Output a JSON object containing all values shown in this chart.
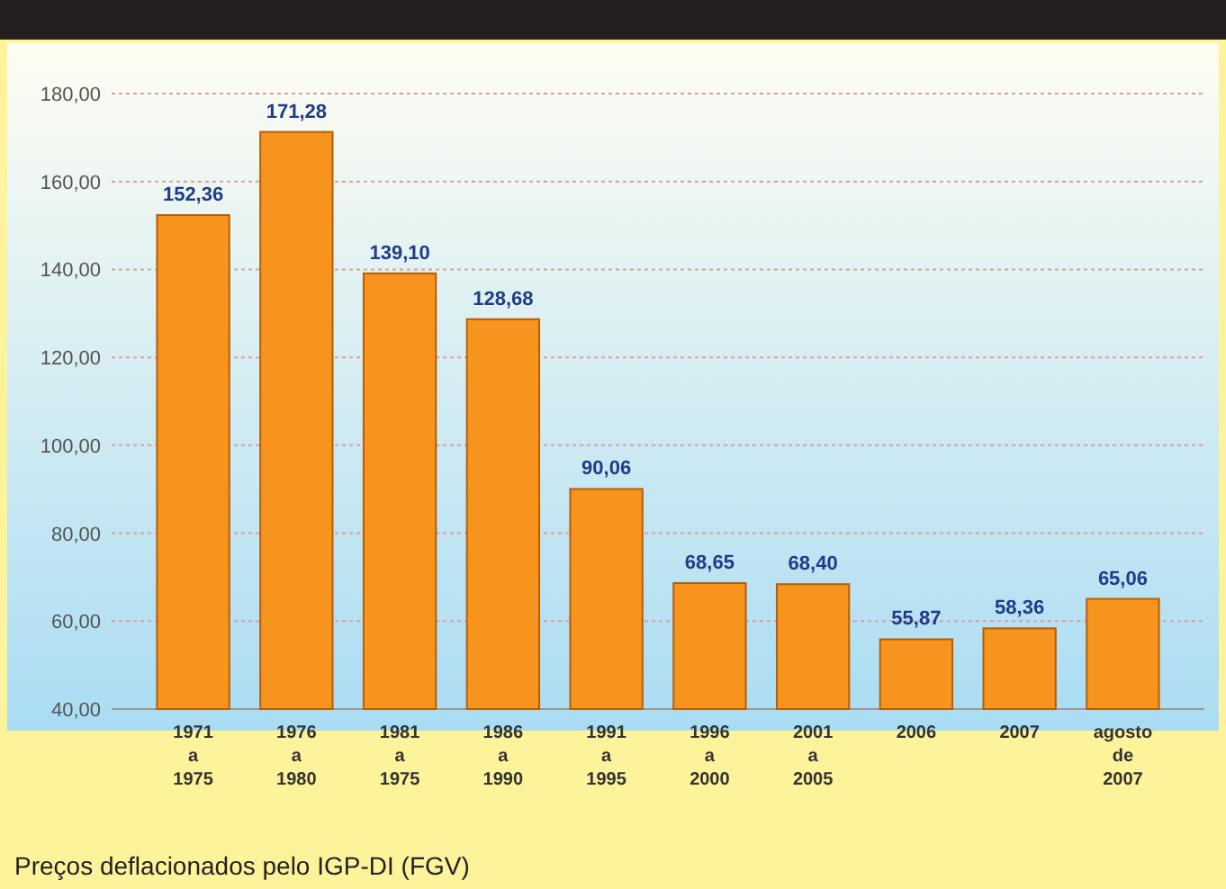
{
  "chart_data": {
    "type": "bar",
    "categories": [
      "1971\na\n1975",
      "1976\na\n1980",
      "1981\na\n1975",
      "1986\na\n1990",
      "1991\na\n1995",
      "1996\na\n2000",
      "2001\na\n2005",
      "2006",
      "2007",
      "agosto\nde\n2007"
    ],
    "values": [
      152.36,
      171.28,
      139.1,
      128.68,
      90.06,
      68.65,
      68.4,
      55.87,
      58.36,
      65.06
    ],
    "value_labels": [
      "152,36",
      "171,28",
      "139,10",
      "128,68",
      "90,06",
      "68,65",
      "68,40",
      "55,87",
      "58,36",
      "65,06"
    ],
    "color": "#f7941d",
    "ylim": [
      40,
      180
    ],
    "yticks": [
      {
        "value": 40,
        "label": "40,00"
      },
      {
        "value": 60,
        "label": "60,00"
      },
      {
        "value": 80,
        "label": "80,00"
      },
      {
        "value": 100,
        "label": "100,00"
      },
      {
        "value": 120,
        "label": "120,00"
      },
      {
        "value": 140,
        "label": "140,00"
      },
      {
        "value": 160,
        "label": "160,00"
      },
      {
        "value": 180,
        "label": "180,00"
      }
    ],
    "grid": "y",
    "annotations": [
      "Preços deflacionados pelo IGP-DI (FGV)"
    ]
  }
}
